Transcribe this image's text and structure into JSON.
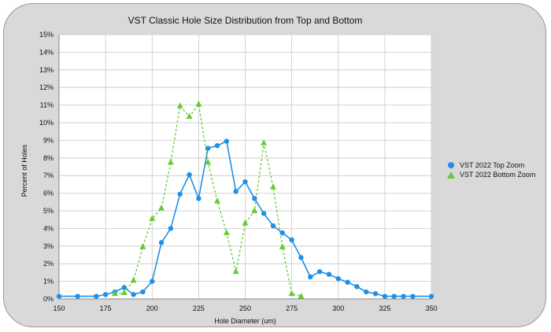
{
  "colors": {
    "series1": "#1e90e6",
    "series2": "#66cc33",
    "grid": "#c8c8c8"
  },
  "chart_data": {
    "type": "line",
    "title": "VST Classic Hole Size Distribution from Top and Bottom",
    "xlabel": "Hole Diameter (um)",
    "ylabel": "Percent of Holes",
    "xlim": [
      150,
      350
    ],
    "ylim": [
      0,
      15
    ],
    "xticks": [
      150,
      175,
      200,
      225,
      250,
      275,
      300,
      325,
      350
    ],
    "yticks": [
      0,
      1,
      2,
      3,
      4,
      5,
      6,
      7,
      8,
      9,
      10,
      11,
      12,
      13,
      14,
      15
    ],
    "ytick_suffix": "%",
    "legend_position": "right",
    "grid": true,
    "series": [
      {
        "name": "VST 2022 Top Zoom",
        "marker": "circle",
        "line": "solid",
        "x": [
          150,
          160,
          170,
          175,
          180,
          185,
          190,
          195,
          200,
          205,
          210,
          215,
          220,
          225,
          230,
          235,
          240,
          245,
          250,
          255,
          260,
          265,
          270,
          275,
          280,
          285,
          290,
          295,
          300,
          305,
          310,
          315,
          320,
          325,
          330,
          335,
          340,
          350
        ],
        "values": [
          0.15,
          0.15,
          0.15,
          0.25,
          0.4,
          0.65,
          0.25,
          0.4,
          1.0,
          3.2,
          4.0,
          5.95,
          7.05,
          5.7,
          8.55,
          8.7,
          8.95,
          6.1,
          6.65,
          5.7,
          4.85,
          4.15,
          3.75,
          3.35,
          2.35,
          1.25,
          1.55,
          1.4,
          1.15,
          0.95,
          0.7,
          0.4,
          0.3,
          0.15,
          0.15,
          0.15,
          0.15,
          0.15
        ]
      },
      {
        "name": "VST 2022 Bottom Zoom",
        "marker": "triangle",
        "line": "dashed",
        "x": [
          180,
          185,
          190,
          195,
          200,
          205,
          210,
          215,
          220,
          225,
          230,
          235,
          240,
          245,
          250,
          255,
          260,
          265,
          270,
          275,
          280
        ],
        "values": [
          0.3,
          0.35,
          1.05,
          2.95,
          4.55,
          5.15,
          7.75,
          10.95,
          10.35,
          11.05,
          7.75,
          5.55,
          3.75,
          1.55,
          4.3,
          5.0,
          8.85,
          6.35,
          2.95,
          0.3,
          0.15
        ]
      }
    ]
  }
}
